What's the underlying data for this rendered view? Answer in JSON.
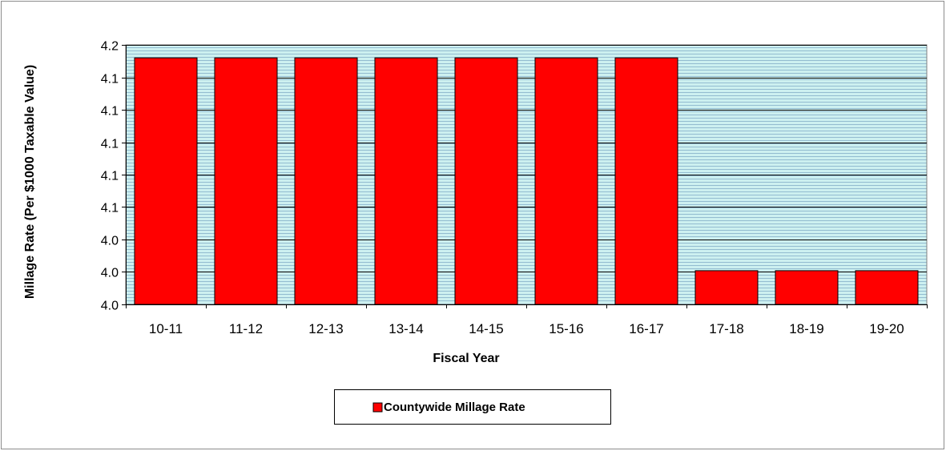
{
  "chart_data": {
    "type": "bar",
    "xlabel": "Fiscal Year",
    "ylabel": "Millage Rate (Per $1000 Taxable Value)",
    "categories": [
      "10-11",
      "11-12",
      "12-13",
      "13-14",
      "14-15",
      "15-16",
      "16-17",
      "17-18",
      "18-19",
      "19-20"
    ],
    "series": [
      {
        "name": "Countywide Millage Rate",
        "values": [
          4.19,
          4.19,
          4.19,
          4.19,
          4.19,
          4.19,
          4.19,
          4.026,
          4.026,
          4.026
        ]
      }
    ],
    "ylim": [
      4.0,
      4.2
    ],
    "yticks": [
      4.0,
      4.025,
      4.05,
      4.075,
      4.1,
      4.125,
      4.15,
      4.175,
      4.2
    ],
    "ytick_labels": [
      "4.0",
      "4.0",
      "4.0",
      "4.1",
      "4.1",
      "4.1",
      "4.1",
      "4.1",
      "4.2"
    ],
    "grid": true,
    "legend_position": "bottom-center",
    "colors": {
      "bar": "#ff0000",
      "bar_outline": "#000000",
      "plot_background": "#cdf0f0",
      "plot_stripe": "#93bcd0",
      "gridline": "#000000"
    }
  }
}
